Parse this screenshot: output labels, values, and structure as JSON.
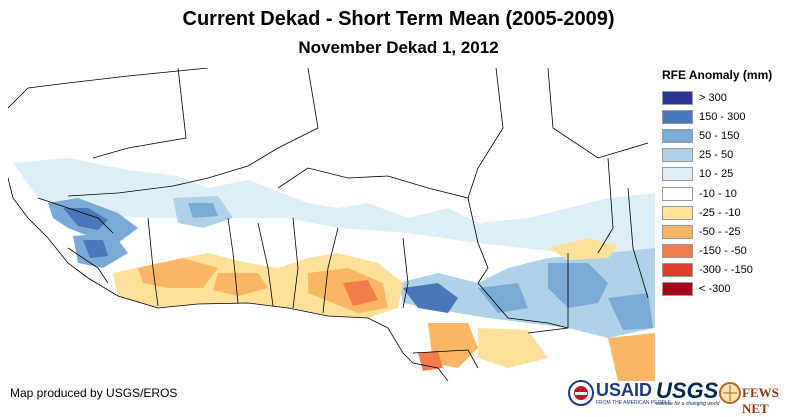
{
  "title": "Current Dekad - Short Term Mean (2005-2009)",
  "subtitle": "November Dekad 1, 2012",
  "legend": {
    "title": "RFE Anomaly (mm)",
    "items": [
      {
        "label": "> 300",
        "color": "#2b3595"
      },
      {
        "label": "150 - 300",
        "color": "#4a77b8"
      },
      {
        "label": "50 - 150",
        "color": "#7aaad5"
      },
      {
        "label": "25 - 50",
        "color": "#b0d2e8"
      },
      {
        "label": "10 - 25",
        "color": "#ddeef6"
      },
      {
        "label": "-10 - 10",
        "color": "#ffffff"
      },
      {
        "label": "-25 - -10",
        "color": "#fde19a"
      },
      {
        "label": "-50 - -25",
        "color": "#f9b664"
      },
      {
        "label": "-150 - -50",
        "color": "#f07d4a"
      },
      {
        "label": "-300 - -150",
        "color": "#e03a28"
      },
      {
        "label": "< -300",
        "color": "#a1001a"
      }
    ]
  },
  "credit": "Map produced by USGS/EROS",
  "logos": {
    "usaid": "USAID",
    "usaid_tag": "FROM THE AMERICAN PEOPLE",
    "usgs": "USGS",
    "usgs_tag": "science for a changing world",
    "fewsnet": "FEWS NET"
  }
}
